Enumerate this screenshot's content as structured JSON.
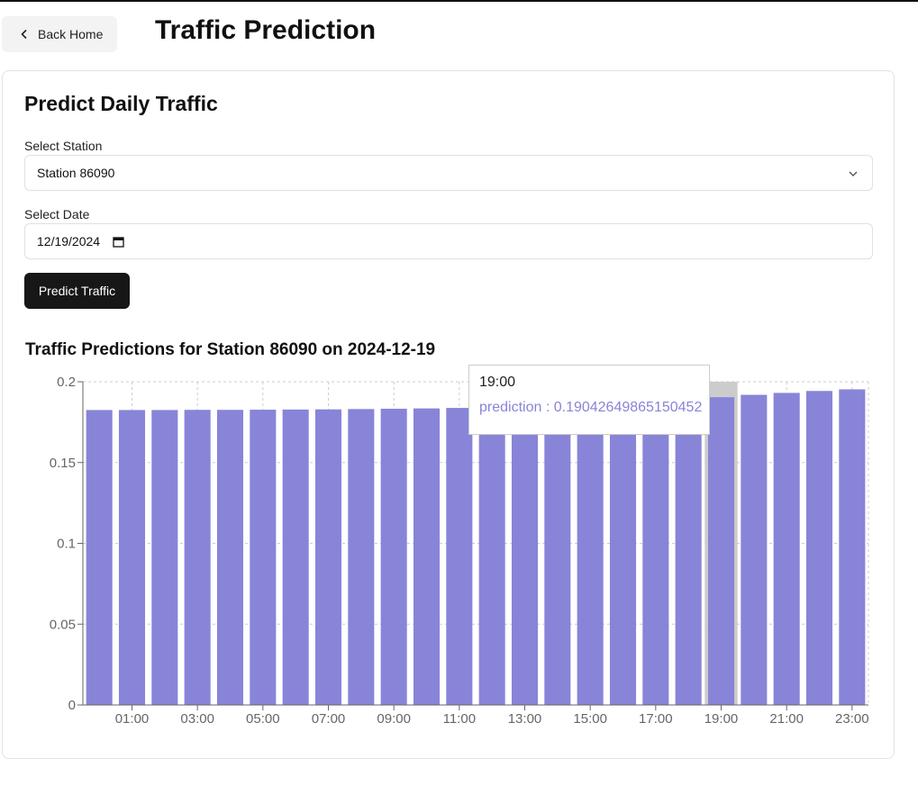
{
  "header": {
    "back_label": "Back Home",
    "title": "Traffic Prediction"
  },
  "form": {
    "card_title": "Predict Daily Traffic",
    "station_label": "Select Station",
    "station_value": "Station 86090",
    "date_label": "Select Date",
    "date_value": "12/19/2024",
    "submit_label": "Predict Traffic"
  },
  "chart_title": "Traffic Predictions for Station 86090 on 2024-12-19",
  "tooltip": {
    "label": "19:00",
    "series_name": "prediction",
    "value": "0.19042649865150452"
  },
  "colors": {
    "bar": "#8884d8",
    "cursor": "#cccccc",
    "grid": "#cccccc",
    "axis": "#666666"
  },
  "chart_data": {
    "type": "bar",
    "categories": [
      "00:00",
      "01:00",
      "02:00",
      "03:00",
      "04:00",
      "05:00",
      "06:00",
      "07:00",
      "08:00",
      "09:00",
      "10:00",
      "11:00",
      "12:00",
      "13:00",
      "14:00",
      "15:00",
      "16:00",
      "17:00",
      "18:00",
      "19:00",
      "20:00",
      "21:00",
      "22:00",
      "23:00"
    ],
    "series": [
      {
        "name": "prediction",
        "values": [
          0.1825,
          0.1825,
          0.1825,
          0.1826,
          0.1826,
          0.1827,
          0.1828,
          0.1829,
          0.1831,
          0.1833,
          0.1835,
          0.1838,
          0.1841,
          0.1845,
          0.185,
          0.1856,
          0.1863,
          0.1871,
          0.188,
          0.19042649865150452,
          0.1919,
          0.1931,
          0.1943,
          0.1953
        ]
      }
    ],
    "tick_labels_x": [
      "01:00",
      "03:00",
      "05:00",
      "07:00",
      "09:00",
      "11:00",
      "13:00",
      "15:00",
      "17:00",
      "19:00",
      "21:00",
      "23:00"
    ],
    "yticks": [
      0,
      0.05,
      0.1,
      0.15,
      0.2
    ],
    "ylim": [
      0,
      0.2
    ],
    "grid": true,
    "highlighted_category": "19:00"
  }
}
